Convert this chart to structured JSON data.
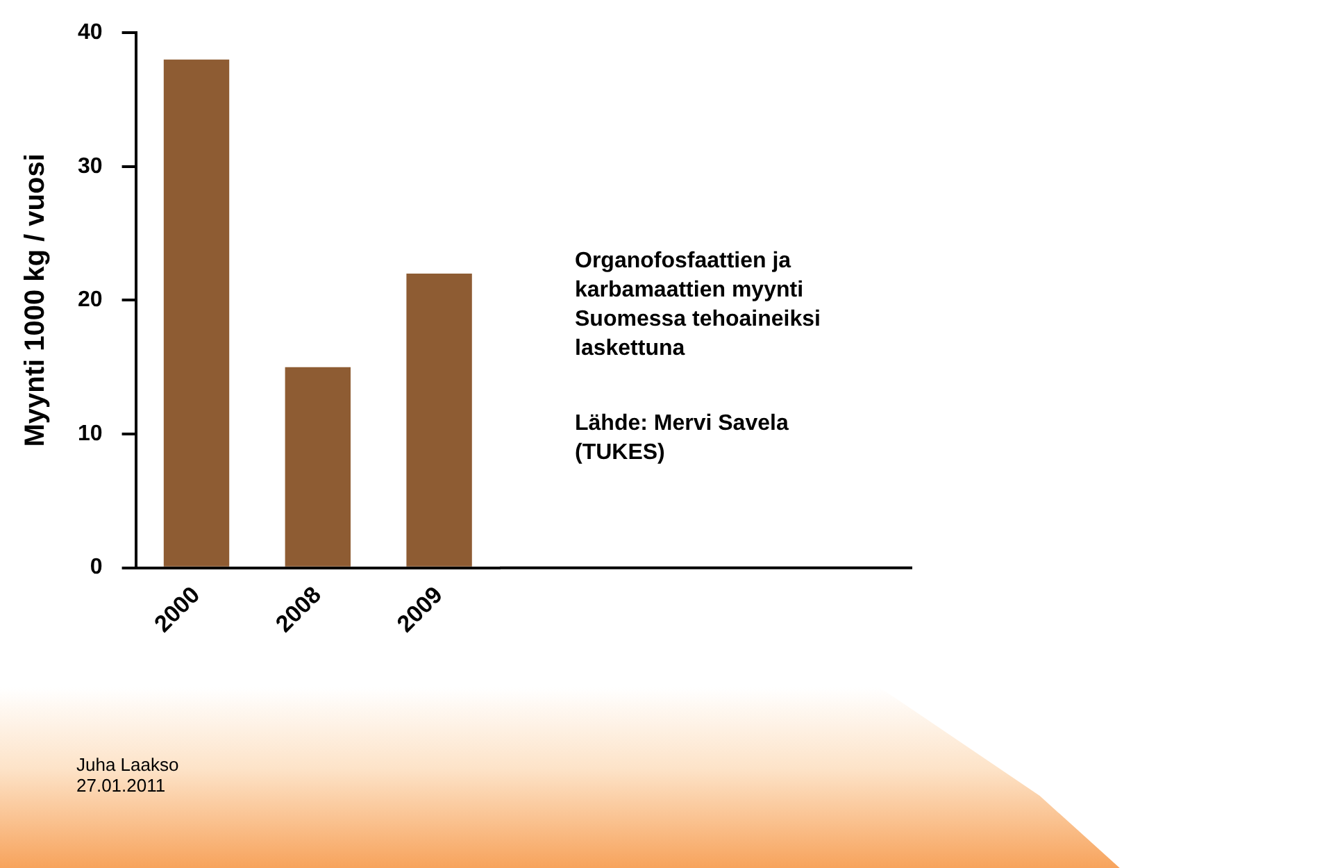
{
  "chart_data": {
    "type": "bar",
    "title": "Organofosfaattien ja karbamaattien myynti Suomessa tehoaineiksi laskettuna",
    "ylabel": "Myynti 1000 kg / vuosi",
    "categories": [
      "2000",
      "2008",
      "2009"
    ],
    "values": [
      38,
      15,
      22
    ],
    "color": "#8e5c33",
    "ylim": [
      0,
      40
    ],
    "yticks": [
      0,
      10,
      20,
      30,
      40
    ],
    "grid": false,
    "legend": false,
    "annotations": [
      "Lähde: Mervi Savela (TUKES)",
      "Juha Laakso",
      "27.01.2011"
    ]
  }
}
